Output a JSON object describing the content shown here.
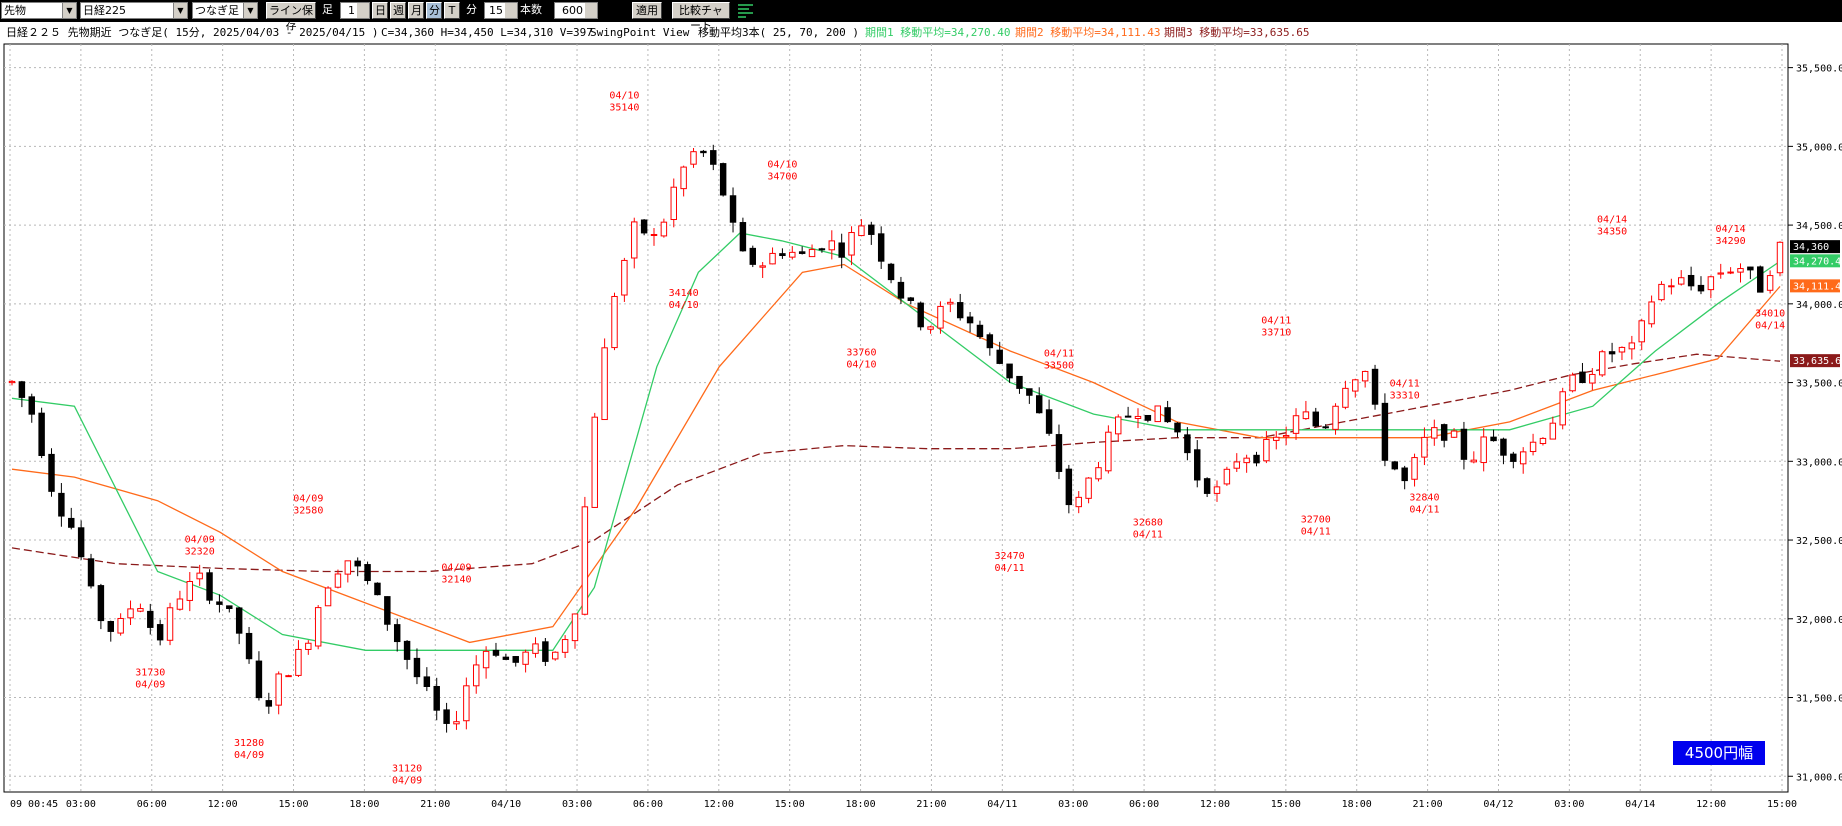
{
  "toolbar": {
    "category": "先物",
    "instrument": "日経225",
    "contract": "つなぎ足",
    "save_layout": "ライン保存",
    "foot_label": "足",
    "foot_value": "1",
    "day_btn": "日",
    "week_btn": "週",
    "month_btn": "月",
    "minute_btn": "分",
    "tick_btn": "T",
    "minute_unit": "分",
    "minute_value": "15",
    "count_label": "本数",
    "count_value": "600",
    "apply_btn": "適用",
    "compare_btn": "比較チャート"
  },
  "info": {
    "title": "日経２２５ 先物期近 つなぎ足( 15分, 2025/04/03 - 2025/04/15 )",
    "ohlc": "C=34,360 H=34,450 L=34,310 V=397",
    "swing": "SwingPoint View",
    "ma_label": "移動平均3本( 25, 70, 200 )",
    "ma1": "期間1 移動平均=34,270.40",
    "ma2": "期間2 移動平均=34,111.43",
    "ma3": "期間3 移動平均=33,635.65"
  },
  "badge": "4500円幅",
  "chart_data": {
    "type": "candlestick",
    "title": "日経２２５ 先物期近 つなぎ足( 15分, 2025/04/03 - 2025/04/15 )",
    "ylim": [
      30900,
      35650
    ],
    "yticks": [
      "35,500.0",
      "35,000.0",
      "34,500.0",
      "34,000.0",
      "33,500.0",
      "33,000.0",
      "32,500.0",
      "32,000.0",
      "31,500.0",
      "31,000.0"
    ],
    "ytick_values": [
      35500,
      35000,
      34500,
      34000,
      33500,
      33000,
      32500,
      32000,
      31500,
      31000
    ],
    "xticks": [
      "09 00:45",
      "03:00",
      "06:00",
      "12:00",
      "15:00",
      "18:00",
      "21:00",
      "04/10",
      "03:00",
      "06:00",
      "12:00",
      "15:00",
      "18:00",
      "21:00",
      "04/11",
      "03:00",
      "06:00",
      "12:00",
      "15:00",
      "18:00",
      "21:00",
      "04/12",
      "03:00",
      "04/14",
      "12:00",
      "15:00"
    ],
    "last_close": "34,360",
    "ma_last": [
      "34,270.4",
      "34,111.4",
      "33,635.6"
    ],
    "colors": {
      "up": "#ff0000",
      "down": "#000000",
      "ma1": "#33cc66",
      "ma2": "#ff6a1a",
      "ma3": "#8b1a1a",
      "label": "#ff0000",
      "grid": "#b8b8b8"
    },
    "close_path": [
      [
        0,
        33500
      ],
      [
        2,
        33300
      ],
      [
        4,
        32800
      ],
      [
        6,
        32550
      ],
      [
        8,
        32050
      ],
      [
        10,
        31900
      ],
      [
        12,
        32150
      ],
      [
        14,
        31850
      ],
      [
        16,
        32150
      ],
      [
        18,
        32250
      ],
      [
        20,
        32100
      ],
      [
        22,
        31900
      ],
      [
        24,
        31400
      ],
      [
        26,
        31650
      ],
      [
        28,
        31800
      ],
      [
        30,
        32200
      ],
      [
        32,
        32400
      ],
      [
        34,
        32250
      ],
      [
        36,
        32000
      ],
      [
        38,
        31750
      ],
      [
        40,
        31500
      ],
      [
        42,
        31250
      ],
      [
        44,
        31650
      ],
      [
        46,
        31850
      ],
      [
        48,
        31700
      ],
      [
        50,
        31800
      ],
      [
        52,
        31750
      ],
      [
        54,
        32000
      ],
      [
        56,
        33300
      ],
      [
        58,
        34100
      ],
      [
        60,
        34500
      ],
      [
        62,
        34400
      ],
      [
        64,
        34800
      ],
      [
        66,
        35000
      ],
      [
        68,
        34800
      ],
      [
        70,
        34300
      ],
      [
        72,
        34250
      ],
      [
        74,
        34350
      ],
      [
        76,
        34300
      ],
      [
        78,
        34400
      ],
      [
        80,
        34350
      ],
      [
        82,
        34550
      ],
      [
        84,
        34250
      ],
      [
        86,
        34000
      ],
      [
        88,
        33850
      ],
      [
        90,
        34000
      ],
      [
        92,
        33900
      ],
      [
        94,
        33700
      ],
      [
        96,
        33550
      ],
      [
        98,
        33400
      ],
      [
        100,
        33100
      ],
      [
        102,
        32650
      ],
      [
        104,
        32950
      ],
      [
        106,
        33200
      ],
      [
        108,
        33350
      ],
      [
        110,
        33300
      ],
      [
        112,
        33200
      ],
      [
        114,
        32900
      ],
      [
        116,
        32800
      ],
      [
        118,
        33050
      ],
      [
        120,
        33050
      ],
      [
        122,
        33150
      ],
      [
        124,
        33300
      ],
      [
        126,
        33200
      ],
      [
        128,
        33500
      ],
      [
        130,
        33600
      ],
      [
        132,
        33050
      ],
      [
        134,
        32850
      ],
      [
        136,
        33150
      ],
      [
        138,
        33200
      ],
      [
        140,
        33000
      ],
      [
        142,
        33150
      ],
      [
        144,
        33050
      ],
      [
        146,
        33100
      ],
      [
        148,
        33250
      ],
      [
        150,
        33500
      ],
      [
        152,
        33600
      ],
      [
        154,
        33700
      ],
      [
        156,
        33700
      ],
      [
        158,
        34100
      ],
      [
        160,
        34150
      ],
      [
        162,
        34100
      ],
      [
        164,
        34200
      ],
      [
        166,
        34250
      ],
      [
        168,
        34100
      ],
      [
        170,
        34360
      ]
    ],
    "ma1": [
      [
        0,
        33400
      ],
      [
        6,
        33350
      ],
      [
        14,
        32300
      ],
      [
        20,
        32150
      ],
      [
        26,
        31900
      ],
      [
        34,
        31800
      ],
      [
        42,
        31800
      ],
      [
        52,
        31800
      ],
      [
        56,
        32200
      ],
      [
        62,
        33600
      ],
      [
        66,
        34200
      ],
      [
        70,
        34450
      ],
      [
        74,
        34400
      ],
      [
        80,
        34300
      ],
      [
        88,
        33900
      ],
      [
        96,
        33500
      ],
      [
        104,
        33300
      ],
      [
        112,
        33200
      ],
      [
        120,
        33200
      ],
      [
        128,
        33200
      ],
      [
        136,
        33200
      ],
      [
        144,
        33200
      ],
      [
        152,
        33350
      ],
      [
        158,
        33700
      ],
      [
        164,
        34000
      ],
      [
        170,
        34270
      ]
    ],
    "ma2": [
      [
        0,
        32950
      ],
      [
        6,
        32900
      ],
      [
        14,
        32750
      ],
      [
        20,
        32550
      ],
      [
        26,
        32300
      ],
      [
        34,
        32100
      ],
      [
        44,
        31850
      ],
      [
        52,
        31950
      ],
      [
        60,
        32700
      ],
      [
        68,
        33600
      ],
      [
        76,
        34200
      ],
      [
        80,
        34250
      ],
      [
        86,
        34000
      ],
      [
        96,
        33700
      ],
      [
        104,
        33500
      ],
      [
        112,
        33250
      ],
      [
        120,
        33150
      ],
      [
        128,
        33150
      ],
      [
        136,
        33150
      ],
      [
        144,
        33250
      ],
      [
        152,
        33450
      ],
      [
        158,
        33550
      ],
      [
        164,
        33650
      ],
      [
        170,
        34111
      ]
    ],
    "ma3": [
      [
        0,
        32450
      ],
      [
        10,
        32350
      ],
      [
        20,
        32320
      ],
      [
        30,
        32300
      ],
      [
        40,
        32300
      ],
      [
        50,
        32350
      ],
      [
        56,
        32500
      ],
      [
        64,
        32850
      ],
      [
        72,
        33050
      ],
      [
        80,
        33100
      ],
      [
        88,
        33080
      ],
      [
        96,
        33080
      ],
      [
        104,
        33120
      ],
      [
        112,
        33150
      ],
      [
        120,
        33150
      ],
      [
        128,
        33250
      ],
      [
        136,
        33350
      ],
      [
        144,
        33450
      ],
      [
        150,
        33550
      ],
      [
        156,
        33620
      ],
      [
        162,
        33680
      ],
      [
        170,
        33636
      ]
    ],
    "swing_labels": [
      {
        "i": 40,
        "price": 31120,
        "pos": "below",
        "date": "04/09"
      },
      {
        "i": 24,
        "price": 31280,
        "pos": "below",
        "date": "04/09"
      },
      {
        "i": 14,
        "price": 31730,
        "pos": "below",
        "date": "04/09"
      },
      {
        "i": 19,
        "price": 32320,
        "pos": "above",
        "date": "04/09"
      },
      {
        "i": 30,
        "price": 32580,
        "pos": "above",
        "date": "04/09"
      },
      {
        "i": 45,
        "price": 32140,
        "pos": "above",
        "date": "04/09"
      },
      {
        "i": 62,
        "price": 35140,
        "pos": "above",
        "date": "04/10"
      },
      {
        "i": 68,
        "price": 34140,
        "pos": "below",
        "date": "04/10"
      },
      {
        "i": 78,
        "price": 34700,
        "pos": "above",
        "date": "04/10"
      },
      {
        "i": 86,
        "price": 33760,
        "pos": "below",
        "date": "04/10"
      },
      {
        "i": 101,
        "price": 32470,
        "pos": "below",
        "date": "04/11"
      },
      {
        "i": 106,
        "price": 33500,
        "pos": "above",
        "date": "04/11"
      },
      {
        "i": 115,
        "price": 32680,
        "pos": "below",
        "date": "04/11"
      },
      {
        "i": 128,
        "price": 33710,
        "pos": "above",
        "date": "04/11"
      },
      {
        "i": 132,
        "price": 32700,
        "pos": "below",
        "date": "04/11"
      },
      {
        "i": 141,
        "price": 33310,
        "pos": "above",
        "date": "04/11"
      },
      {
        "i": 143,
        "price": 32840,
        "pos": "below",
        "date": "04/11"
      },
      {
        "i": 162,
        "price": 34350,
        "pos": "above",
        "date": "04/14"
      },
      {
        "i": 174,
        "price": 34290,
        "pos": "above",
        "date": "04/14"
      },
      {
        "i": 178,
        "price": 34010,
        "pos": "below",
        "date": "04/14"
      }
    ]
  }
}
